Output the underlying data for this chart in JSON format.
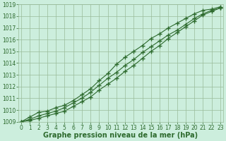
{
  "x": [
    0,
    1,
    2,
    3,
    4,
    5,
    6,
    7,
    8,
    9,
    10,
    11,
    12,
    13,
    14,
    15,
    16,
    17,
    18,
    19,
    20,
    21,
    22,
    23
  ],
  "line1": [
    1009.0,
    1009.4,
    1009.8,
    1009.9,
    1010.2,
    1010.4,
    1010.8,
    1011.3,
    1011.8,
    1012.5,
    1013.1,
    1013.9,
    1014.5,
    1015.0,
    1015.5,
    1016.1,
    1016.5,
    1017.0,
    1017.4,
    1017.8,
    1018.2,
    1018.5,
    1018.6,
    1018.8
  ],
  "line2": [
    1009.0,
    1009.2,
    1009.5,
    1009.7,
    1009.9,
    1010.2,
    1010.6,
    1011.0,
    1011.5,
    1012.1,
    1012.7,
    1013.2,
    1013.8,
    1014.3,
    1014.9,
    1015.4,
    1015.9,
    1016.4,
    1016.8,
    1017.3,
    1017.8,
    1018.2,
    1018.5,
    1018.7
  ],
  "line3": [
    1009.0,
    1009.1,
    1009.3,
    1009.5,
    1009.7,
    1009.9,
    1010.3,
    1010.7,
    1011.1,
    1011.7,
    1012.2,
    1012.7,
    1013.3,
    1013.8,
    1014.4,
    1015.0,
    1015.5,
    1016.1,
    1016.6,
    1017.1,
    1017.6,
    1018.1,
    1018.4,
    1018.7
  ],
  "line_color": "#2d6a2d",
  "bg_color": "#cceedd",
  "grid_color": "#99bb99",
  "xlabel": "Graphe pression niveau de la mer (hPa)",
  "ylim": [
    1009,
    1019
  ],
  "xlim": [
    0,
    23
  ],
  "yticks": [
    1009,
    1010,
    1011,
    1012,
    1013,
    1014,
    1015,
    1016,
    1017,
    1018,
    1019
  ],
  "xticks": [
    0,
    1,
    2,
    3,
    4,
    5,
    6,
    7,
    8,
    9,
    10,
    11,
    12,
    13,
    14,
    15,
    16,
    17,
    18,
    19,
    20,
    21,
    22,
    23
  ],
  "marker": "+",
  "markersize": 4,
  "linewidth": 0.8,
  "xlabel_fontsize": 7,
  "tick_fontsize": 5.5,
  "tick_color": "#2d6a2d",
  "xlabel_color": "#2d6a2d",
  "xlabel_fontweight": "bold"
}
